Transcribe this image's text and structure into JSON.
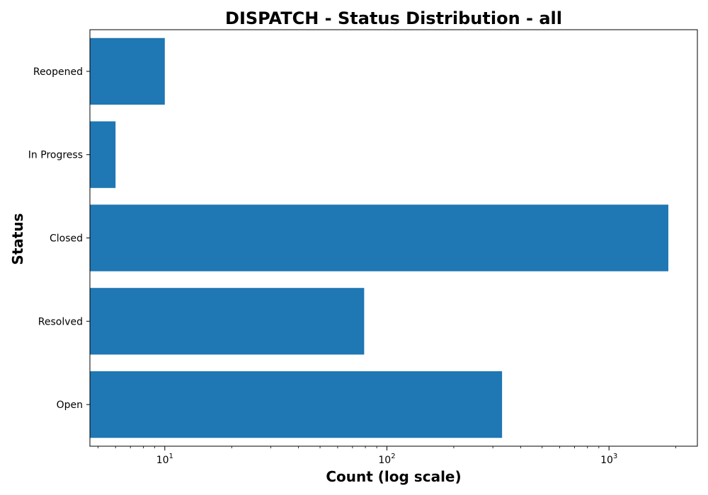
{
  "chart_data": {
    "type": "bar",
    "orientation": "horizontal",
    "title": "DISPATCH - Status Distribution - all",
    "xlabel": "Count (log scale)",
    "ylabel": "Status",
    "x_scale": "log",
    "xlim": [
      4.6,
      2500
    ],
    "categories": [
      "Open",
      "Resolved",
      "Closed",
      "In Progress",
      "Reopened"
    ],
    "values": [
      330,
      79,
      1850,
      6,
      10
    ],
    "bar_color": "#1f77b4",
    "x_ticks": [
      {
        "value": 10,
        "base": "10",
        "exp": "1"
      },
      {
        "value": 100,
        "base": "10",
        "exp": "2"
      },
      {
        "value": 1000,
        "base": "10",
        "exp": "3"
      }
    ],
    "grid": false,
    "legend": "none"
  }
}
